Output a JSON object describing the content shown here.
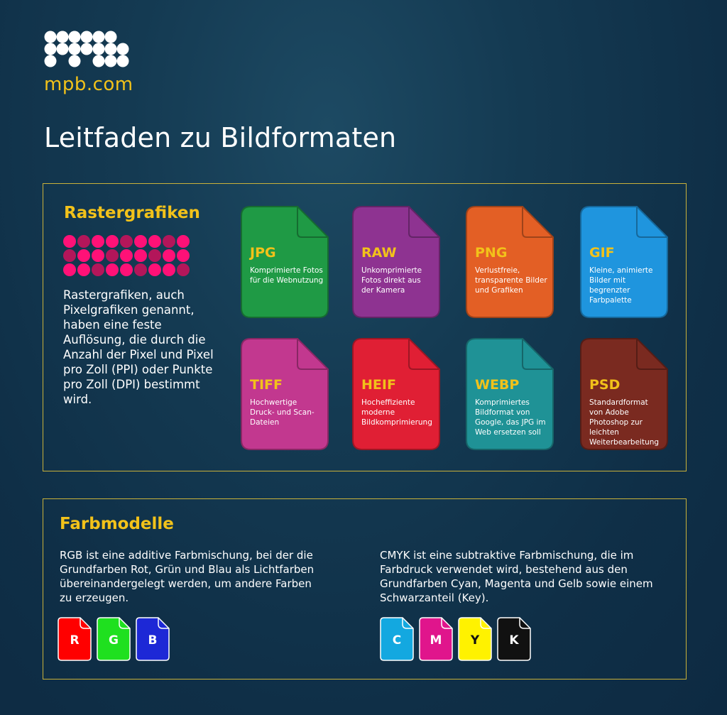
{
  "brand": {
    "logo_text": "mpb.com",
    "accent": "#f2c21a"
  },
  "title": "Leitfaden zu Bildformaten",
  "raster": {
    "heading": "Rastergrafiken",
    "description": "Rastergrafiken, auch Pixelgrafiken genannt, haben eine feste Auflösung, die durch die Anzahl der Pixel und Pixel pro Zoll (PPI) oder Punkte pro Zoll (DPI) bestimmt wird.",
    "formats": [
      {
        "name": "JPG",
        "desc": "Komprimierte Fotos für die Webnutzung",
        "color": "#1f9a45"
      },
      {
        "name": "RAW",
        "desc": "Unkomprimierte Fotos direkt aus der Kamera",
        "color": "#8e3391"
      },
      {
        "name": "PNG",
        "desc": "Verlustfreie, transparente Bilder und Grafiken",
        "color": "#e35f25"
      },
      {
        "name": "GIF",
        "desc": "Kleine, animierte Bilder mit begrenzter Farbpalette",
        "color": "#1f95de"
      },
      {
        "name": "TIFF",
        "desc": "Hochwertige Druck- und Scan-Dateien",
        "color": "#c2388f"
      },
      {
        "name": "HEIF",
        "desc": "Hocheffiziente moderne Bildkomprimierung",
        "color": "#e01f34"
      },
      {
        "name": "WEBP",
        "desc": "Komprimiertes Bildformat von Google, das JPG im Web ersetzen soll",
        "color": "#1f9296"
      },
      {
        "name": "PSD",
        "desc": "Standardformat von Adobe Photoshop zur leichten Weiterbearbeitung",
        "color": "#7a2a20"
      }
    ]
  },
  "farbmodelle": {
    "heading": "Farbmodelle",
    "rgb_text": "RGB ist eine additive Farbmischung, bei der die Grundfarben Rot, Grün und Blau als Lichtfarben übereinandergelegt werden, um andere Farben zu erzeugen.",
    "cmyk_text": "CMYK ist eine subtraktive Farbmischung, die im Farbdruck verwendet wird, bestehend aus den Grundfarben Cyan, Magenta und Gelb sowie einem Schwarzanteil (Key).",
    "rgb": [
      {
        "letter": "R",
        "color": "#ff0000",
        "text_color": "#ffffff"
      },
      {
        "letter": "G",
        "color": "#1fe01f",
        "text_color": "#ffffff"
      },
      {
        "letter": "B",
        "color": "#1d28d6",
        "text_color": "#ffffff"
      }
    ],
    "cmyk": [
      {
        "letter": "C",
        "color": "#13a8e0",
        "text_color": "#ffffff"
      },
      {
        "letter": "M",
        "color": "#e0158c",
        "text_color": "#ffffff"
      },
      {
        "letter": "Y",
        "color": "#fff200",
        "text_color": "#111111"
      },
      {
        "letter": "K",
        "color": "#111111",
        "text_color": "#ffffff"
      }
    ]
  }
}
